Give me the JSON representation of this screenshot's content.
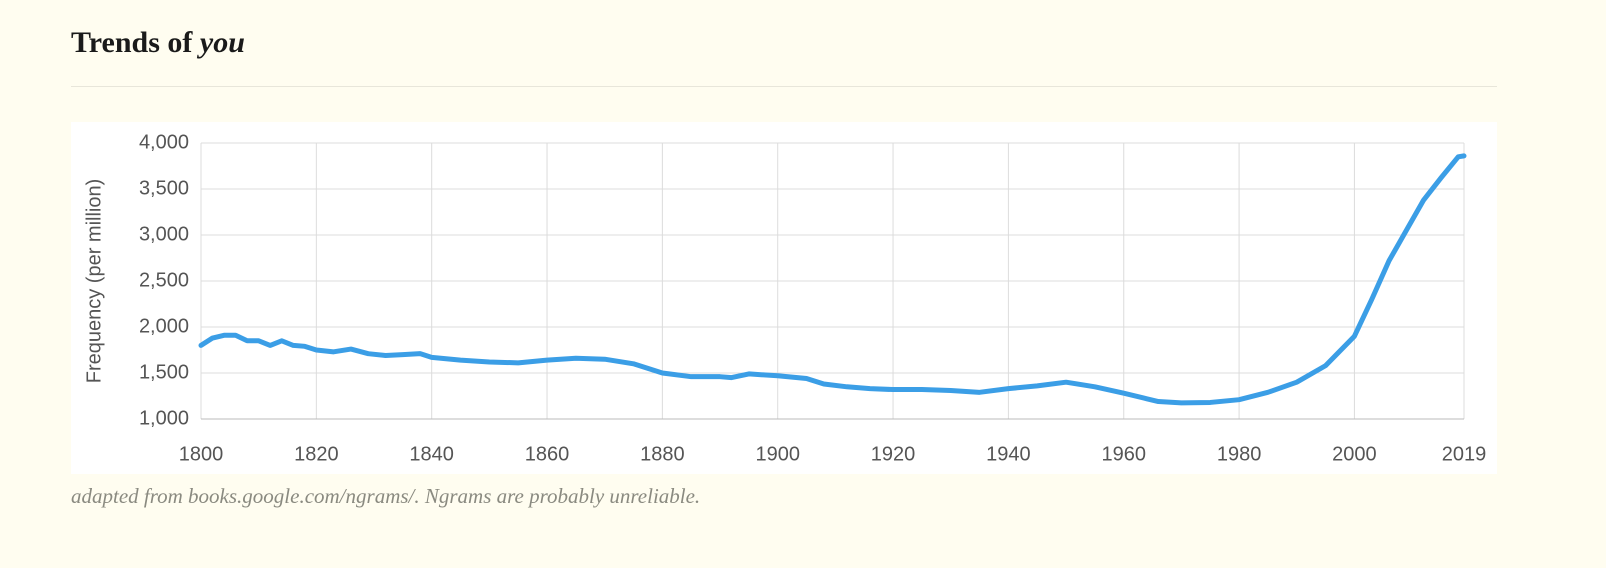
{
  "chart_data": {
    "type": "line",
    "title": "Trends of",
    "title_term": "you",
    "y_label": "Frequency (per million)",
    "note": "adapted from books.google.com/ngrams/. Ngrams are probably unreliable.",
    "color": "#3b9ee6",
    "grid": true,
    "x": [
      1800,
      1802,
      1804,
      1806,
      1808,
      1810,
      1812,
      1814,
      1816,
      1818,
      1820,
      1823,
      1826,
      1829,
      1832,
      1835,
      1838,
      1840,
      1845,
      1850,
      1855,
      1860,
      1865,
      1870,
      1875,
      1880,
      1885,
      1890,
      1892,
      1895,
      1900,
      1905,
      1908,
      1912,
      1916,
      1920,
      1925,
      1930,
      1935,
      1940,
      1945,
      1950,
      1955,
      1960,
      1964,
      1966,
      1970,
      1975,
      1980,
      1985,
      1990,
      1995,
      2000,
      2003,
      2006,
      2009,
      2012,
      2015,
      2018,
      2019
    ],
    "values": [
      1800,
      1880,
      1910,
      1910,
      1850,
      1850,
      1800,
      1850,
      1800,
      1790,
      1750,
      1730,
      1760,
      1710,
      1690,
      1700,
      1710,
      1670,
      1640,
      1620,
      1610,
      1640,
      1660,
      1650,
      1600,
      1500,
      1460,
      1460,
      1450,
      1490,
      1470,
      1440,
      1380,
      1350,
      1330,
      1320,
      1320,
      1310,
      1290,
      1330,
      1360,
      1400,
      1350,
      1280,
      1220,
      1190,
      1175,
      1180,
      1210,
      1290,
      1400,
      1580,
      1900,
      2300,
      2720,
      3050,
      3380,
      3620,
      3850,
      3860
    ],
    "xlim": [
      1800,
      2019
    ],
    "xticks": [
      1800,
      1820,
      1840,
      1860,
      1880,
      1900,
      1920,
      1940,
      1960,
      1980,
      2000,
      2019
    ],
    "ylim": [
      1000,
      4000
    ],
    "yticks": [
      {
        "value": 1000,
        "label": "1,000"
      },
      {
        "value": 1500,
        "label": "1,500"
      },
      {
        "value": 2000,
        "label": "2,000"
      },
      {
        "value": 2500,
        "label": "2,500"
      },
      {
        "value": 3000,
        "label": "3,000"
      },
      {
        "value": 3500,
        "label": "3,500"
      },
      {
        "value": 4000,
        "label": "4,000"
      }
    ]
  }
}
